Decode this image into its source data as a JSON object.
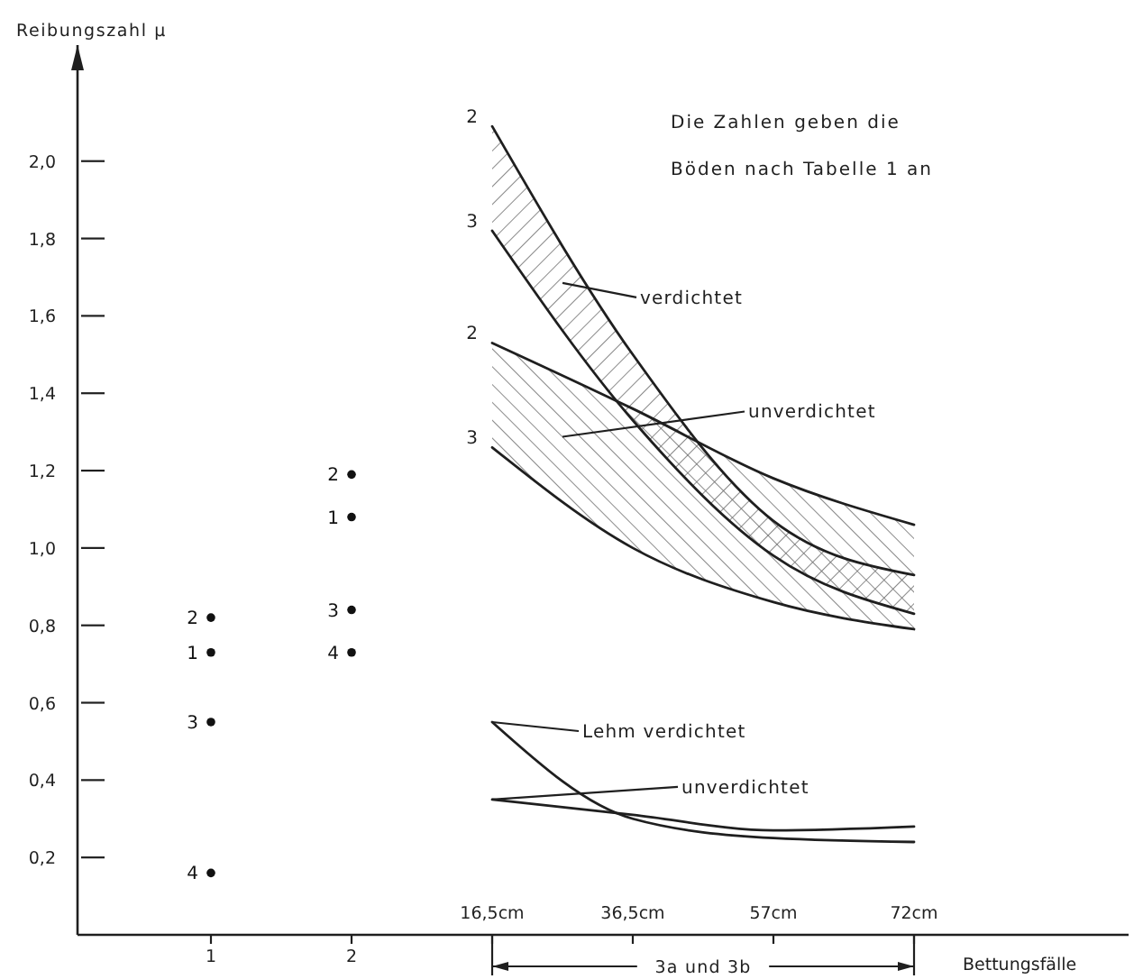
{
  "chart_data": {
    "type": "line",
    "ylabel": "Reibungszahl μ",
    "xlabel": "Bettungsfälle",
    "categories": [
      "1",
      "2",
      "16,5cm",
      "36,5cm",
      "57cm",
      "72cm"
    ],
    "ylim": [
      0,
      2.3
    ],
    "yticks": [
      {
        "value": 0.2,
        "label": "0,2"
      },
      {
        "value": 0.4,
        "label": "0,4"
      },
      {
        "value": 0.6,
        "label": "0,6"
      },
      {
        "value": 0.8,
        "label": "0,8"
      },
      {
        "value": 1.0,
        "label": "1,0"
      },
      {
        "value": 1.2,
        "label": "1,2"
      },
      {
        "value": 1.4,
        "label": "1,4"
      },
      {
        "value": 1.6,
        "label": "1,6"
      },
      {
        "value": 1.8,
        "label": "1,8"
      },
      {
        "value": 2.0,
        "label": "2,0"
      }
    ],
    "series": [
      {
        "name": "1",
        "type": "scatter",
        "marker": "circle",
        "color": "#111111",
        "values": [
          0.73,
          1.08,
          null,
          null,
          null,
          null
        ]
      },
      {
        "name": "2",
        "type": "scatter",
        "marker": "circle",
        "color": "#111111",
        "values": [
          0.82,
          1.19,
          null,
          null,
          null,
          null
        ]
      },
      {
        "name": "3",
        "type": "scatter",
        "marker": "circle",
        "color": "#111111",
        "values": [
          0.55,
          0.84,
          null,
          null,
          null,
          null
        ]
      },
      {
        "name": "4",
        "type": "scatter",
        "marker": "circle",
        "color": "#111111",
        "values": [
          0.16,
          0.73,
          null,
          null,
          null,
          null
        ]
      },
      {
        "name": "2",
        "color": "#1f1f1f",
        "values": [
          null,
          null,
          2.09,
          1.5,
          1.07,
          0.93
        ],
        "lower": [
          null,
          null,
          1.82,
          1.33,
          0.98,
          0.83
        ],
        "upper": [
          null,
          null,
          2.09,
          1.5,
          1.07,
          0.93
        ]
      },
      {
        "name": "3",
        "color": "#1f1f1f",
        "values": [
          null,
          null,
          1.82,
          1.33,
          0.98,
          0.83
        ]
      },
      {
        "name": "2",
        "color": "#1f1f1f",
        "values": [
          null,
          null,
          1.53,
          1.36,
          1.18,
          1.06
        ],
        "lower": [
          null,
          null,
          1.26,
          1.0,
          0.86,
          0.79
        ],
        "upper": [
          null,
          null,
          1.53,
          1.36,
          1.18,
          1.06
        ]
      },
      {
        "name": "3",
        "color": "#1f1f1f",
        "values": [
          null,
          null,
          1.26,
          1.0,
          0.86,
          0.79
        ]
      },
      {
        "color": "#1f1f1f",
        "values": [
          null,
          null,
          0.55,
          0.3,
          0.25,
          0.24
        ]
      },
      {
        "color": "#1f1f1f",
        "values": [
          null,
          null,
          0.35,
          0.31,
          0.27,
          0.28
        ]
      }
    ],
    "annotations": [
      "Die Zahlen geben die Böden nach Tabelle 1 an",
      "verdichtet",
      "unverdichtet",
      {
        "text": "Lehm verdichtet",
        "x": "16,5cm",
        "y": 0.55
      },
      {
        "text": "unverdichtet",
        "x": "16,5cm",
        "y": 0.35
      },
      "3a und 3b"
    ]
  }
}
